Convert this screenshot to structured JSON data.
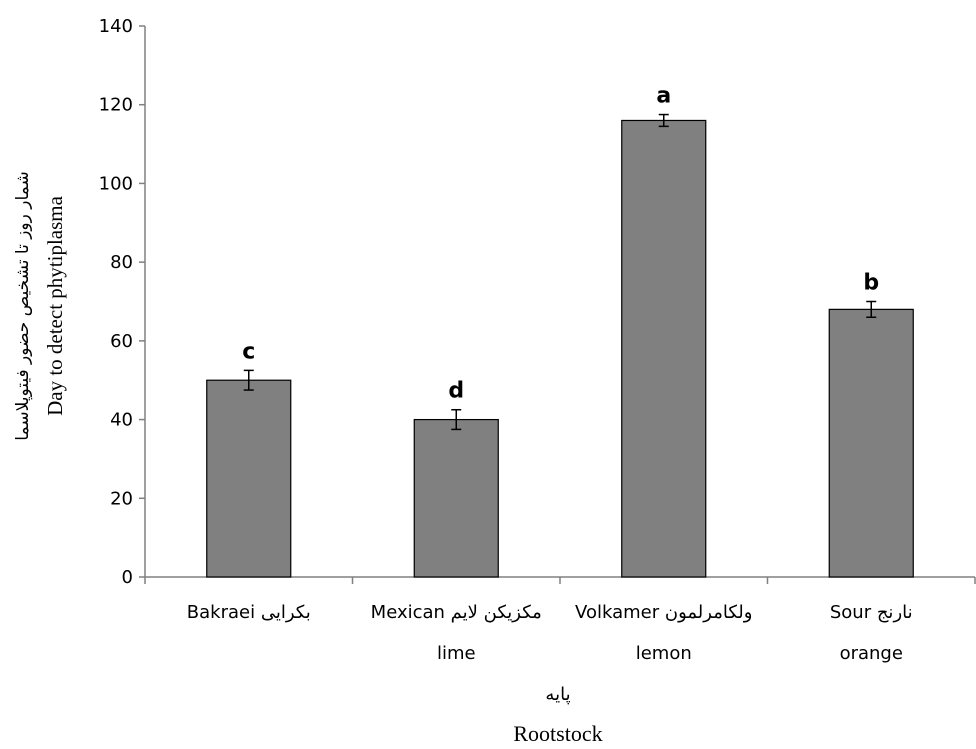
{
  "chart_data": {
    "type": "bar",
    "categories": [
      {
        "line1": "Bakraei بکرایی",
        "line2": ""
      },
      {
        "line1": "Mexican مکزیکن لایم",
        "line2": "lime"
      },
      {
        "line1": "Volkamer ولکامرلمون",
        "line2": "lemon"
      },
      {
        "line1": "Sour نارنج",
        "line2": "orange"
      }
    ],
    "values": [
      50,
      40,
      116,
      68
    ],
    "errors": [
      2.5,
      2.5,
      1.5,
      2.0
    ],
    "significance_letters": [
      "c",
      "d",
      "a",
      "b"
    ],
    "ylim": [
      0,
      140
    ],
    "yticks": [
      0,
      20,
      40,
      60,
      80,
      100,
      120,
      140
    ],
    "ylabel_fa": "شمار روز تا تشخیص حضور فیتوپلاسما",
    "ylabel_en": "Day to detect phytiplasma",
    "xlabel_fa": "پایه",
    "xlabel_en": "Rootstock",
    "bar_color": "#808080",
    "grid": false
  }
}
